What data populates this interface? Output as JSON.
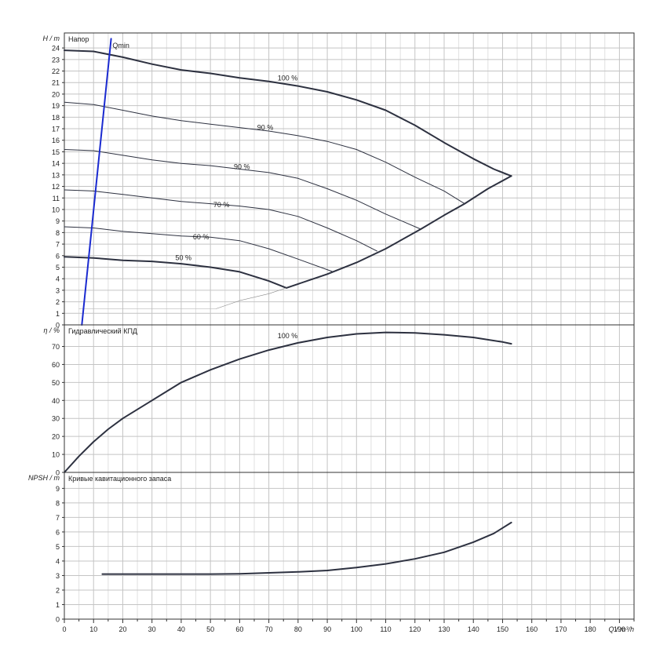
{
  "x_axis": {
    "label": "Q / m³/h",
    "range": [
      0,
      195
    ],
    "ticks": [
      0,
      10,
      20,
      30,
      40,
      50,
      60,
      70,
      80,
      90,
      100,
      110,
      120,
      130,
      140,
      150,
      160,
      170,
      180,
      190
    ]
  },
  "chart_data": [
    {
      "type": "line",
      "title": "Напор",
      "ylabel": "H / m",
      "ylim": [
        0,
        25.3
      ],
      "y_ticks": [
        0,
        1,
        2,
        3,
        4,
        5,
        6,
        7,
        8,
        9,
        10,
        11,
        12,
        13,
        14,
        15,
        16,
        17,
        18,
        19,
        20,
        21,
        22,
        23,
        24
      ],
      "grid": true,
      "series": [
        {
          "name": "100 %",
          "label_at": [
            73,
            21.2
          ],
          "stroke": 2,
          "points": [
            [
              0,
              23.8
            ],
            [
              10,
              23.7
            ],
            [
              20,
              23.2
            ],
            [
              30,
              22.6
            ],
            [
              40,
              22.1
            ],
            [
              50,
              21.8
            ],
            [
              60,
              21.4
            ],
            [
              70,
              21.1
            ],
            [
              80,
              20.7
            ],
            [
              90,
              20.2
            ],
            [
              100,
              19.5
            ],
            [
              110,
              18.6
            ],
            [
              120,
              17.3
            ],
            [
              130,
              15.8
            ],
            [
              140,
              14.4
            ],
            [
              147,
              13.5
            ],
            [
              153,
              12.9
            ]
          ]
        },
        {
          "name": "90 %",
          "label_at": [
            66,
            16.9
          ],
          "stroke": 1,
          "points": [
            [
              0,
              19.3
            ],
            [
              10,
              19.1
            ],
            [
              20,
              18.6
            ],
            [
              30,
              18.1
            ],
            [
              40,
              17.7
            ],
            [
              50,
              17.4
            ],
            [
              60,
              17.1
            ],
            [
              70,
              16.8
            ],
            [
              80,
              16.4
            ],
            [
              90,
              15.9
            ],
            [
              100,
              15.2
            ],
            [
              110,
              14.1
            ],
            [
              120,
              12.8
            ],
            [
              130,
              11.6
            ],
            [
              137,
              10.5
            ]
          ]
        },
        {
          "name": "90 %",
          "label_at": [
            58,
            13.5
          ],
          "stroke": 1,
          "points": [
            [
              0,
              15.2
            ],
            [
              10,
              15.1
            ],
            [
              20,
              14.7
            ],
            [
              30,
              14.3
            ],
            [
              40,
              14.0
            ],
            [
              50,
              13.8
            ],
            [
              60,
              13.5
            ],
            [
              70,
              13.2
            ],
            [
              80,
              12.7
            ],
            [
              90,
              11.8
            ],
            [
              100,
              10.8
            ],
            [
              110,
              9.6
            ],
            [
              122,
              8.3
            ]
          ]
        },
        {
          "name": "70 %",
          "label_at": [
            51,
            10.2
          ],
          "stroke": 1,
          "points": [
            [
              0,
              11.7
            ],
            [
              10,
              11.6
            ],
            [
              20,
              11.3
            ],
            [
              30,
              11.0
            ],
            [
              40,
              10.7
            ],
            [
              50,
              10.5
            ],
            [
              60,
              10.3
            ],
            [
              70,
              10.0
            ],
            [
              80,
              9.4
            ],
            [
              90,
              8.4
            ],
            [
              100,
              7.3
            ],
            [
              107,
              6.4
            ]
          ]
        },
        {
          "name": "60 %",
          "label_at": [
            44,
            7.4
          ],
          "stroke": 1,
          "points": [
            [
              0,
              8.5
            ],
            [
              10,
              8.4
            ],
            [
              20,
              8.1
            ],
            [
              30,
              7.9
            ],
            [
              40,
              7.7
            ],
            [
              50,
              7.6
            ],
            [
              60,
              7.3
            ],
            [
              70,
              6.6
            ],
            [
              80,
              5.7
            ],
            [
              92,
              4.6
            ]
          ]
        },
        {
          "name": "50 %",
          "label_at": [
            38,
            5.6
          ],
          "stroke": 2,
          "points": [
            [
              0,
              5.9
            ],
            [
              10,
              5.8
            ],
            [
              20,
              5.6
            ],
            [
              30,
              5.5
            ],
            [
              40,
              5.3
            ],
            [
              50,
              5.0
            ],
            [
              60,
              4.6
            ],
            [
              70,
              3.8
            ],
            [
              76,
              3.2
            ]
          ]
        },
        {
          "name": "system-boundary",
          "stroke": 2,
          "points": [
            [
              76,
              3.2
            ],
            [
              90,
              4.4
            ],
            [
              100,
              5.4
            ],
            [
              110,
              6.6
            ],
            [
              122,
              8.3
            ],
            [
              130,
              9.5
            ],
            [
              137,
              10.5
            ],
            [
              145,
              11.8
            ],
            [
              153,
              12.9
            ]
          ]
        },
        {
          "name": "min-boundary",
          "stroke": 0.6,
          "color": "#888888",
          "points": [
            [
              52,
              1.4
            ],
            [
              60,
              2.1
            ],
            [
              70,
              2.7
            ],
            [
              76,
              3.2
            ]
          ]
        },
        {
          "name": "min-flat",
          "stroke": 0.6,
          "color": "#bbbbbb",
          "points": [
            [
              5,
              1.4
            ],
            [
              52,
              1.4
            ]
          ]
        },
        {
          "name": "Qmin",
          "label_at": [
            16.5,
            24.0
          ],
          "stroke": 2,
          "color": "#1a2ad0",
          "points": [
            [
              6,
              0
            ],
            [
              16,
              24.8
            ]
          ]
        }
      ]
    },
    {
      "type": "line",
      "title": "Гидравлический КПД",
      "ylabel": "η / %",
      "ylim": [
        0,
        82
      ],
      "y_ticks": [
        0,
        10,
        20,
        30,
        40,
        50,
        60,
        70
      ],
      "grid": true,
      "series": [
        {
          "name": "100 %",
          "label_at": [
            73,
            74.5
          ],
          "stroke": 2,
          "points": [
            [
              0,
              0
            ],
            [
              5,
              9
            ],
            [
              10,
              17
            ],
            [
              15,
              24
            ],
            [
              20,
              30
            ],
            [
              30,
              40
            ],
            [
              40,
              50
            ],
            [
              50,
              57
            ],
            [
              60,
              63
            ],
            [
              70,
              68
            ],
            [
              80,
              72
            ],
            [
              90,
              75
            ],
            [
              100,
              77
            ],
            [
              110,
              77.8
            ],
            [
              120,
              77.5
            ],
            [
              130,
              76.5
            ],
            [
              140,
              75
            ],
            [
              150,
              72.5
            ],
            [
              153,
              71.5
            ]
          ]
        }
      ]
    },
    {
      "type": "line",
      "title": "Кривые кавитационного запаса",
      "ylabel": "NPSH / m",
      "ylim": [
        0,
        10.1
      ],
      "y_ticks": [
        0,
        1,
        2,
        3,
        4,
        5,
        6,
        7,
        8,
        9
      ],
      "grid": true,
      "series": [
        {
          "name": "npsh",
          "stroke": 2,
          "points": [
            [
              13,
              3.1
            ],
            [
              30,
              3.1
            ],
            [
              50,
              3.1
            ],
            [
              60,
              3.12
            ],
            [
              80,
              3.25
            ],
            [
              90,
              3.35
            ],
            [
              100,
              3.55
            ],
            [
              110,
              3.8
            ],
            [
              120,
              4.15
            ],
            [
              130,
              4.6
            ],
            [
              140,
              5.3
            ],
            [
              147,
              5.9
            ],
            [
              153,
              6.65
            ]
          ]
        }
      ]
    }
  ]
}
